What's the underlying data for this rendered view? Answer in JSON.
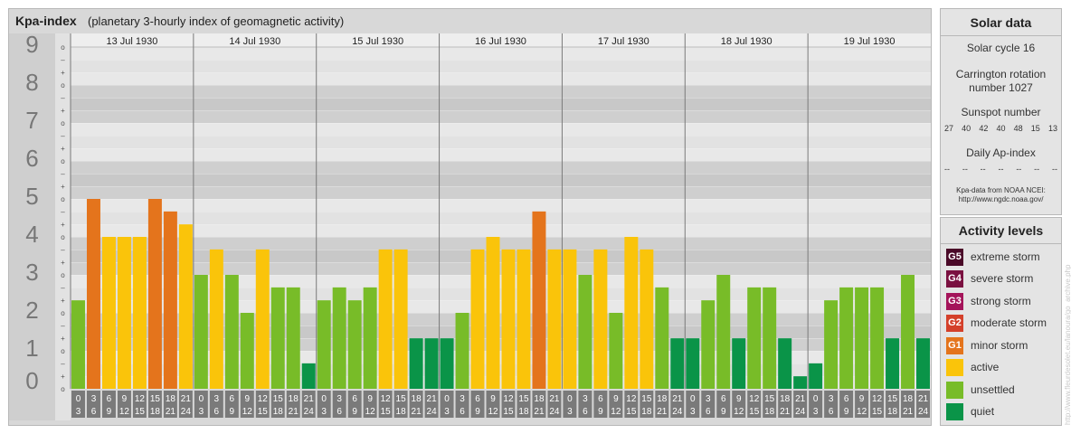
{
  "header": {
    "title": "Kpa-index",
    "subtitle": "(planetary 3-hourly index of geomagnetic activity)"
  },
  "chart_data": {
    "type": "bar",
    "ylim": [
      0,
      9
    ],
    "y_ticks": [
      "0",
      "1",
      "2",
      "3",
      "4",
      "5",
      "6",
      "7",
      "8",
      "9"
    ],
    "sub_tick_symbols": [
      "+",
      "o",
      "–"
    ],
    "days": [
      "13 Jul 1930",
      "14 Jul 1930",
      "15 Jul 1930",
      "16 Jul 1930",
      "17 Jul 1930",
      "18 Jul 1930",
      "19 Jul 1930"
    ],
    "slot_start_hours": [
      "0",
      "3",
      "6",
      "9",
      "12",
      "15",
      "18",
      "21"
    ],
    "slot_end_hours": [
      "3",
      "6",
      "9",
      "12",
      "15",
      "18",
      "21",
      "24"
    ],
    "values": [
      2.33,
      5.0,
      4.0,
      4.0,
      4.0,
      5.0,
      4.67,
      4.33,
      3.0,
      3.67,
      3.0,
      2.0,
      3.67,
      2.67,
      2.67,
      0.67,
      2.33,
      2.67,
      2.33,
      2.67,
      3.67,
      3.67,
      1.33,
      1.33,
      1.33,
      2.0,
      3.67,
      4.0,
      3.67,
      3.67,
      4.67,
      3.67,
      3.67,
      3.0,
      3.67,
      2.0,
      4.0,
      3.67,
      2.67,
      1.33,
      1.33,
      2.33,
      3.0,
      1.33,
      2.67,
      2.67,
      1.33,
      0.33,
      0.67,
      2.33,
      2.67,
      2.67,
      2.67,
      1.33,
      3.0,
      1.33
    ],
    "grid": true
  },
  "solar": {
    "title": "Solar data",
    "cycle": "Solar cycle 16",
    "carrington_line1": "Carrington rotation",
    "carrington_line2": "number 1027",
    "sunspot_title": "Sunspot number",
    "sunspots": [
      "27",
      "40",
      "42",
      "40",
      "48",
      "15",
      "13"
    ],
    "ap_title": "Daily Ap-index",
    "ap_values": [
      "--",
      "--",
      "--",
      "--",
      "--",
      "--",
      "--"
    ],
    "source_line1": "Kpa-data from NOAA NCEI:",
    "source_line2": "http://www.ngdc.noaa.gov/"
  },
  "levels": {
    "title": "Activity levels",
    "items": [
      {
        "code": "G5",
        "label": "extreme storm",
        "color": "#4a0a28"
      },
      {
        "code": "G4",
        "label": "severe storm",
        "color": "#7a1040"
      },
      {
        "code": "G3",
        "label": "strong storm",
        "color": "#a4145a"
      },
      {
        "code": "G2",
        "label": "moderate storm",
        "color": "#d4402a"
      },
      {
        "code": "G1",
        "label": "minor storm",
        "color": "#e4741c"
      },
      {
        "code": "",
        "label": "active",
        "color": "#fac40a"
      },
      {
        "code": "",
        "label": "unsettled",
        "color": "#78bc28"
      },
      {
        "code": "",
        "label": "quiet",
        "color": "#0a9448"
      }
    ]
  },
  "colors": {
    "quiet": "#0a9448",
    "unsettled": "#78bc28",
    "active": "#fac40a",
    "minor_storm": "#e4741c"
  },
  "watermark": "http://www.fleurdesolet.eu/lanoura/go_archive.php"
}
